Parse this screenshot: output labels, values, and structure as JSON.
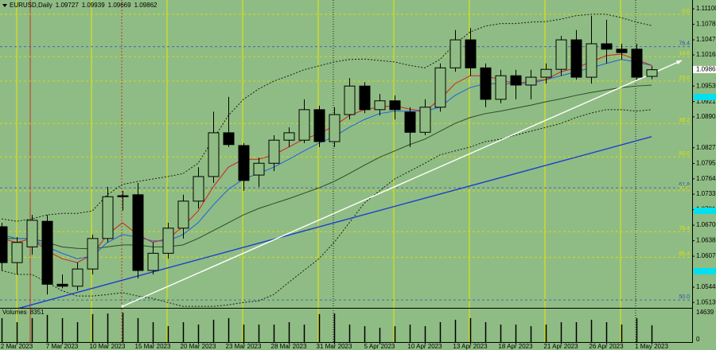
{
  "chart_data": {
    "type": "candlestick",
    "title": "EURUSD,Daily",
    "background": "#8fbc84",
    "up_color": "#8fbc84",
    "down_color": "#000000",
    "categories": [
      null,
      "2 Mar 2023",
      null,
      null,
      "7 Mar 2023",
      null,
      null,
      "10 Mar 2023",
      null,
      null,
      "15 Mar 2023",
      null,
      null,
      "20 Mar 2023",
      null,
      null,
      "23 Mar 2023",
      null,
      null,
      "28 Mar 2023",
      null,
      null,
      "31 Mar 2023",
      null,
      null,
      "5 Apr 2023",
      null,
      null,
      "10 Apr 2023",
      null,
      null,
      "13 Apr 2023",
      null,
      null,
      "18 Apr 2023",
      null,
      null,
      "21 Apr 2023",
      null,
      null,
      "26 Apr 2023",
      null,
      null,
      "1 May 2023"
    ],
    "open": [
      1.0667,
      1.0594,
      1.0626,
      1.0678,
      1.055,
      1.0546,
      1.0581,
      1.0643,
      1.073,
      1.0732,
      1.0578,
      1.0613,
      1.0664,
      1.0719,
      1.0769,
      1.0858,
      1.0832,
      1.0772,
      1.0796,
      1.0843,
      1.0843,
      1.0905,
      1.084,
      1.0895,
      1.0953,
      1.0905,
      1.0923,
      1.09,
      1.0859,
      1.091,
      1.099,
      1.1047,
      1.099,
      1.0926,
      1.0974,
      1.0955,
      1.0971,
      1.0987,
      1.1047,
      1.0971,
      1.1039,
      1.1028,
      1.1028,
      1.09727
    ],
    "high": [
      1.0675,
      1.0646,
      1.0691,
      1.0691,
      1.057,
      1.0594,
      1.0651,
      1.0748,
      1.074,
      1.0756,
      1.0635,
      1.0675,
      1.0732,
      1.0788,
      1.0901,
      1.0931,
      1.0837,
      1.0808,
      1.0853,
      1.0869,
      1.0926,
      1.0913,
      1.091,
      1.0969,
      1.0961,
      1.0937,
      1.0934,
      1.091,
      1.0926,
      1.0999,
      1.1067,
      1.1071,
      1.0999,
      1.0986,
      1.0986,
      1.0986,
      1.0999,
      1.1055,
      1.1067,
      1.1096,
      1.1088,
      1.1039,
      1.1039,
      1.09939
    ],
    "low": [
      1.0578,
      1.057,
      1.061,
      1.0529,
      1.0542,
      1.0537,
      1.057,
      1.0635,
      1.07,
      1.0562,
      1.057,
      1.0602,
      1.0643,
      1.0704,
      1.0756,
      1.0829,
      1.074,
      1.0748,
      1.078,
      1.0829,
      1.0837,
      1.0829,
      1.0829,
      1.0885,
      1.0898,
      1.0893,
      1.0885,
      1.0829,
      1.0853,
      1.0901,
      1.0982,
      1.0974,
      1.091,
      1.0918,
      1.0926,
      1.0926,
      1.0958,
      1.0974,
      1.0966,
      1.0958,
      1.0999,
      1.1007,
      1.0966,
      1.09669
    ],
    "close": [
      1.0594,
      1.0635,
      1.068,
      1.055,
      1.0546,
      1.0581,
      1.0643,
      1.0728,
      1.0728,
      1.0578,
      1.0613,
      1.0664,
      1.0719,
      1.0769,
      1.0858,
      1.0834,
      1.0761,
      1.0796,
      1.0843,
      1.0858,
      1.0905,
      1.084,
      1.0895,
      1.0953,
      1.0905,
      1.0923,
      1.0905,
      1.0859,
      1.091,
      1.099,
      1.1047,
      1.099,
      1.0926,
      1.0974,
      1.0955,
      1.0971,
      1.0987,
      1.1047,
      1.0971,
      1.1039,
      1.1028,
      1.1021,
      1.0971,
      1.09862
    ],
    "ylim": [
      1.0502,
      1.1128
    ],
    "yticks": [
      {
        "value": 1.111,
        "label": "1.11100"
      },
      {
        "value": 1.10785,
        "label": "1.10785"
      },
      {
        "value": 1.1047,
        "label": "1.10470"
      },
      {
        "value": 1.10164,
        "label": "1.10164"
      },
      {
        "value": 1.0953,
        "label": "1.09530"
      },
      {
        "value": 1.09215,
        "label": "1.09215"
      },
      {
        "value": 1.08904,
        "label": "1.08904"
      },
      {
        "value": 1.08275,
        "label": "1.08275"
      },
      {
        "value": 1.07955,
        "label": "1.07955"
      },
      {
        "value": 1.07643,
        "label": "1.07643"
      },
      {
        "value": 1.07331,
        "label": "1.07331"
      },
      {
        "value": 1.07017,
        "label": "1.07017"
      },
      {
        "value": 1.067,
        "label": "1.06700"
      },
      {
        "value": 1.06385,
        "label": "1.06385"
      },
      {
        "value": 1.0607,
        "label": "1.06070"
      },
      {
        "value": 1.0544,
        "label": "1.05440"
      },
      {
        "value": 1.0513,
        "label": "1.05130"
      }
    ],
    "current_price": 1.09866,
    "overlays": [
      {
        "color": "#1c1c1c",
        "style": "dotted",
        "values": [
          1.0683,
          1.0678,
          1.0683,
          1.0691,
          1.0694,
          1.0694,
          1.0699,
          1.0732,
          1.0753,
          1.0759,
          1.0764,
          1.0769,
          1.0775,
          1.0796,
          1.0845,
          1.0893,
          1.0926,
          1.0947,
          1.0963,
          1.0974,
          1.0986,
          1.0994,
          1.1002,
          1.1007,
          1.1008,
          1.1005,
          1.1002,
          1.0995,
          1.099,
          1.1007,
          1.1039,
          1.1063,
          1.1075,
          1.108,
          1.108,
          1.1083,
          1.1084,
          1.1089,
          1.1096,
          1.1099,
          1.1099,
          1.1092,
          1.1083,
          1.1076
        ]
      },
      {
        "color": "#1c1c1c",
        "style": "dotted",
        "values": [
          1.0578,
          1.057,
          1.057,
          1.0554,
          1.0537,
          1.0526,
          1.0526,
          1.0529,
          1.0533,
          1.0526,
          1.0521,
          1.0513,
          1.0505,
          1.0505,
          1.0505,
          1.0508,
          1.0513,
          1.0516,
          1.0529,
          1.0554,
          1.0578,
          1.0602,
          1.0635,
          1.0675,
          1.0715,
          1.074,
          1.0764,
          1.078,
          1.0796,
          1.0813,
          1.0821,
          1.0829,
          1.084,
          1.0845,
          1.0853,
          1.0861,
          1.0869,
          1.0877,
          1.0889,
          1.0898,
          1.0905,
          1.0905,
          1.0902,
          1.0905
        ]
      },
      {
        "color": "#2d4a2d",
        "style": "solid",
        "values": [
          1.0643,
          1.0643,
          1.0643,
          1.0635,
          1.0626,
          1.0623,
          1.0622,
          1.0626,
          1.063,
          1.063,
          1.0626,
          1.0626,
          1.063,
          1.0643,
          1.0659,
          1.0675,
          1.0691,
          1.0704,
          1.0714,
          1.0724,
          1.0735,
          1.0746,
          1.0759,
          1.0775,
          1.0792,
          1.0808,
          1.0821,
          1.0834,
          1.0845,
          1.0861,
          1.0877,
          1.0889,
          1.0897,
          1.0902,
          1.0908,
          1.0914,
          1.0921,
          1.0927,
          1.0934,
          1.094,
          1.0945,
          1.095,
          1.0953,
          1.0955
        ]
      },
      {
        "color": "#2060e0",
        "style": "solid",
        "values": [
          1.0651,
          1.0643,
          1.0643,
          1.0626,
          1.0613,
          1.0602,
          1.0607,
          1.0635,
          1.0651,
          1.0646,
          1.0638,
          1.0638,
          1.0651,
          1.0675,
          1.0711,
          1.0743,
          1.0764,
          1.0775,
          1.0788,
          1.0804,
          1.0821,
          1.0837,
          1.085,
          1.0869,
          1.0885,
          1.0897,
          1.0902,
          1.0902,
          1.0902,
          1.091,
          1.0934,
          1.095,
          1.0958,
          1.0958,
          1.0958,
          1.0958,
          1.0966,
          1.0974,
          1.0982,
          1.099,
          1.0999,
          1.1007,
          1.1002,
          1.0995
        ]
      },
      {
        "color": "#d42020",
        "style": "solid",
        "values": [
          1.0643,
          1.0635,
          1.0643,
          1.0618,
          1.0602,
          1.0594,
          1.061,
          1.0651,
          1.0675,
          1.0651,
          1.0635,
          1.0643,
          1.0667,
          1.0699,
          1.0748,
          1.0788,
          1.0804,
          1.0804,
          1.0813,
          1.0829,
          1.0845,
          1.0856,
          1.0872,
          1.0893,
          1.0905,
          1.091,
          1.0913,
          1.0906,
          1.0902,
          1.0926,
          1.0958,
          1.0974,
          1.0974,
          1.0966,
          1.0958,
          1.0963,
          1.0966,
          1.0982,
          1.099,
          1.1002,
          1.1015,
          1.1018,
          1.1007,
          1.0995
        ]
      }
    ],
    "trendlines": [
      {
        "color": "#1a3fd0",
        "x": [
          1,
          43
        ],
        "values": [
          1.05,
          1.085
        ]
      },
      {
        "color": "#ffffff",
        "x": [
          8,
          45
        ],
        "values": [
          1.0505,
          1.1005
        ],
        "arrow": true
      }
    ],
    "fib_levels": [
      {
        "label": "0.0",
        "value": 1.1099,
        "color": "#e0e000"
      },
      {
        "label": "76.4",
        "value": 1.1033,
        "color": "#2a4fc0"
      },
      {
        "label": "14.6",
        "value": 1.1013,
        "color": "#e0e000"
      },
      {
        "label": "23.6",
        "value": 1.0963,
        "color": "#e0e000"
      },
      {
        "label": "38.2",
        "value": 1.0877,
        "color": "#e0e000"
      },
      {
        "label": "50.0",
        "value": 1.0809,
        "color": "#e0e000"
      },
      {
        "label": "61.8",
        "value": 1.0746,
        "color": "#2a4fc0"
      },
      {
        "label": "61.8",
        "value": 1.074,
        "color": "#e0e000"
      },
      {
        "label": "76.4",
        "value": 1.0657,
        "color": "#e0e000"
      },
      {
        "label": "85.4",
        "value": 1.0605,
        "color": "#e0e000"
      },
      {
        "label": "50.0",
        "value": 1.0518,
        "color": "#2a4fc0"
      }
    ],
    "volume": {
      "label": "Volumes",
      "color": "#000000",
      "ylim": [
        0,
        14639
      ],
      "yticks": [
        14639,
        0
      ],
      "values": [
        11900,
        9900,
        11900,
        13500,
        11900,
        9900,
        13900,
        14200,
        14639,
        11900,
        9900,
        7900,
        9900,
        8700,
        11100,
        11900,
        8700,
        8700,
        8700,
        9900,
        8700,
        13900,
        14200,
        8700,
        7900,
        7100,
        7900,
        8700,
        7900,
        9900,
        11100,
        11900,
        9900,
        8700,
        8700,
        7900,
        8700,
        9900,
        9900,
        11100,
        9900,
        8700,
        11900,
        8351
      ]
    }
  }
}
